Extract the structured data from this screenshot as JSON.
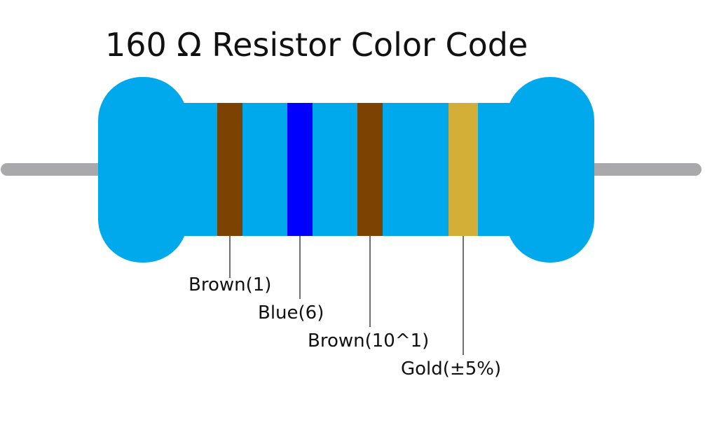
{
  "title": "160 Ω Resistor Color Code",
  "bands": [
    {
      "label": "Brown(1)"
    },
    {
      "label": "Blue(6)"
    },
    {
      "label": "Brown(10^1)"
    },
    {
      "label": "Gold(±5%)"
    }
  ]
}
